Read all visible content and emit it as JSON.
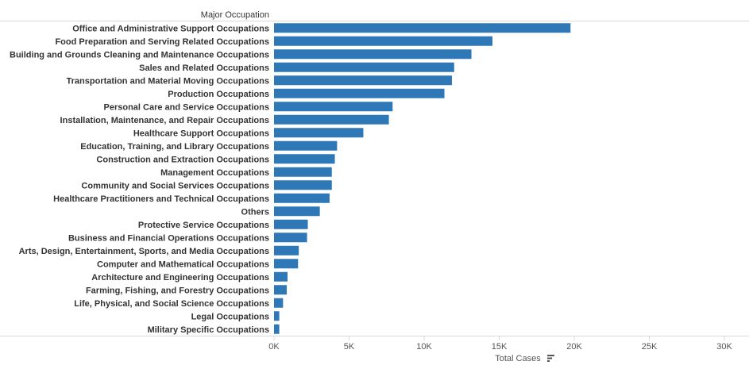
{
  "chart_data": {
    "type": "bar",
    "orientation": "horizontal",
    "row_header": "Major Occupation",
    "xlabel": "Total Cases",
    "sort_indicator": "sort-descending-icon",
    "categories": [
      "Office and Administrative Support Occupations",
      "Food Preparation and Serving Related Occupations",
      "Building and Grounds Cleaning and Maintenance Occupations",
      "Sales and Related Occupations",
      "Transportation and Material Moving Occupations",
      "Production Occupations",
      "Personal Care and Service Occupations",
      "Installation, Maintenance, and Repair Occupations",
      "Healthcare Support Occupations",
      "Education, Training, and Library Occupations",
      "Construction and Extraction Occupations",
      "Management Occupations",
      "Community and Social Services Occupations",
      "Healthcare Practitioners and Technical Occupations",
      "Others",
      "Protective Service Occupations",
      "Business and Financial Operations Occupations",
      "Arts, Design, Entertainment, Sports, and Media Occupations",
      "Computer and Mathematical Occupations",
      "Architecture and Engineering Occupations",
      "Farming, Fishing, and Forestry Occupations",
      "Life, Physical, and Social Science Occupations",
      "Legal Occupations",
      "Military Specific Occupations"
    ],
    "values": [
      19750,
      14550,
      13150,
      12000,
      11850,
      11350,
      7900,
      7650,
      5950,
      4200,
      4050,
      3850,
      3850,
      3700,
      3050,
      2250,
      2200,
      1650,
      1600,
      900,
      850,
      600,
      350,
      350
    ],
    "xlim": [
      0,
      30000
    ],
    "xticks": [
      0,
      5000,
      10000,
      15000,
      20000,
      25000,
      30000
    ],
    "xtick_labels": [
      "0K",
      "5K",
      "10K",
      "15K",
      "20K",
      "25K",
      "30K"
    ],
    "grid": false,
    "bar_color": "#2e78b7"
  }
}
